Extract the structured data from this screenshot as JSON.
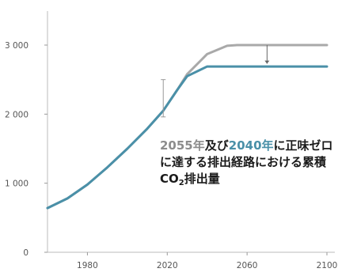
{
  "chart_data": {
    "type": "line",
    "x": [
      1960,
      1970,
      1980,
      1990,
      2000,
      2010,
      2018,
      2025,
      2030,
      2040,
      2050,
      2055,
      2060,
      2070,
      2080,
      2090,
      2100
    ],
    "series": [
      {
        "color": "#a9a9a9",
        "values": [
          640,
          780,
          980,
          1230,
          1500,
          1790,
          2050,
          2350,
          2580,
          2870,
          2990,
          3000,
          3000,
          3000,
          3000,
          3000,
          3000
        ]
      },
      {
        "color": "#4a90a8",
        "values": [
          640,
          780,
          980,
          1230,
          1500,
          1790,
          2050,
          2350,
          2550,
          2690,
          2690,
          2690,
          2690,
          2690,
          2690,
          2690,
          2690
        ]
      }
    ],
    "xticks": [
      "1980",
      "2020",
      "2060",
      "2100"
    ],
    "yticks": [
      "0",
      "1 000",
      "2 000",
      "3 000"
    ],
    "xlim": [
      1960,
      2100
    ],
    "ylim": [
      0,
      3000
    ],
    "error_bar": {
      "x": 2018,
      "low": 1960,
      "high": 2500
    },
    "arrow": {
      "x": 2070,
      "from": 3000,
      "to": 2730
    }
  },
  "annotation": {
    "part1": "2055年",
    "part2": "及び",
    "part3": "2040年",
    "part4": "に正味ゼロに達する排出経路における累積CO",
    "part5": "2",
    "part6": "排出量"
  }
}
